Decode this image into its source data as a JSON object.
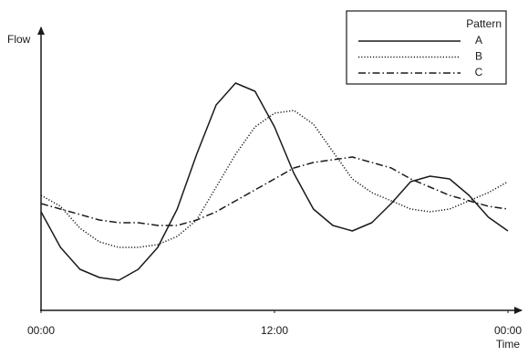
{
  "chart_data": {
    "type": "line",
    "x_label": "Time",
    "y_label": "Flow",
    "legend_title": "Pattern",
    "legend": "upper right",
    "x": [
      0,
      1,
      2,
      3,
      4,
      5,
      6,
      7,
      8,
      9,
      10,
      11,
      12,
      13,
      14,
      15,
      16,
      17,
      18,
      19,
      20,
      21,
      22,
      23,
      24
    ],
    "xlim": [
      0,
      24
    ],
    "xticks": [
      {
        "value": 0,
        "label": "00:00"
      },
      {
        "value": 12,
        "label": "12:00"
      },
      {
        "value": 24,
        "label": "00:00"
      }
    ],
    "ylim": [
      0,
      100
    ],
    "series": [
      {
        "name": "A",
        "color": "#1a1a1a",
        "style": "solid",
        "values": [
          36,
          23,
          15,
          12,
          11,
          15,
          23,
          37,
          57,
          75,
          83,
          80,
          67,
          50,
          37,
          31,
          29,
          32,
          39,
          47,
          49,
          48,
          42,
          34,
          29
        ]
      },
      {
        "name": "B",
        "color": "#1a1a1a",
        "style": "dotted",
        "values": [
          42,
          38,
          30,
          25,
          23,
          23,
          24,
          27,
          33,
          45,
          57,
          67,
          72,
          73,
          68,
          58,
          48,
          43,
          40,
          37,
          36,
          37,
          40,
          43,
          47
        ]
      },
      {
        "name": "C",
        "color": "#1a1a1a",
        "style": "dashdot",
        "values": [
          39,
          37,
          35,
          33,
          32,
          32,
          31,
          31,
          33,
          36,
          40,
          44,
          48,
          52,
          54,
          55,
          56,
          54,
          52,
          48,
          45,
          42,
          40,
          38,
          37
        ]
      }
    ]
  }
}
